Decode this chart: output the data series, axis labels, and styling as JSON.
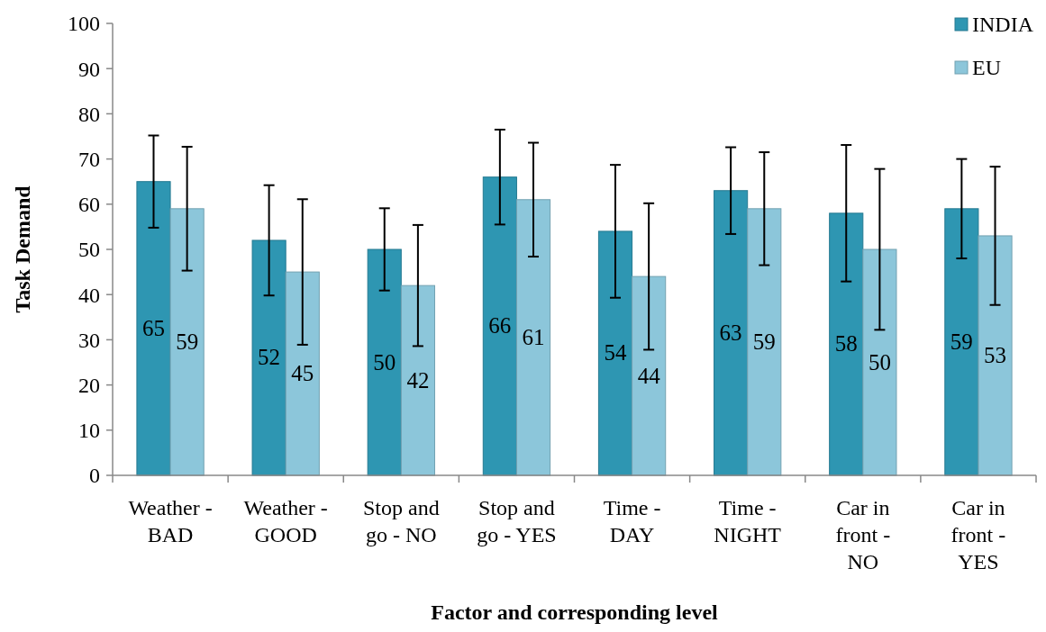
{
  "chart_data": {
    "type": "bar",
    "xlabel": "Factor and corresponding level",
    "ylabel": "Task Demand",
    "categories": [
      "Weather - BAD",
      "Weather - GOOD",
      "Stop and go - NO",
      "Stop and go - YES",
      "Time - DAY",
      "Time - NIGHT",
      "Car in front - NO",
      "Car in front - YES"
    ],
    "series": [
      {
        "name": "INDIA",
        "color": "#2e96b2",
        "values": [
          65,
          52,
          50,
          66,
          54,
          63,
          58,
          59
        ],
        "errors": [
          10.2,
          12.2,
          9.1,
          10.5,
          14.7,
          9.6,
          15.1,
          11
        ]
      },
      {
        "name": "EU",
        "color": "#8cc6da",
        "values": [
          59,
          45,
          42,
          61,
          44,
          59,
          50,
          53
        ],
        "errors": [
          13.7,
          16.1,
          13.4,
          12.6,
          16.2,
          12.5,
          17.8,
          15.3
        ]
      }
    ],
    "ylim": [
      0,
      100
    ],
    "yticks": [
      0,
      10,
      20,
      30,
      40,
      50,
      60,
      70,
      80,
      90,
      100
    ],
    "data_labels": true,
    "legend": "top right",
    "grid": false
  }
}
